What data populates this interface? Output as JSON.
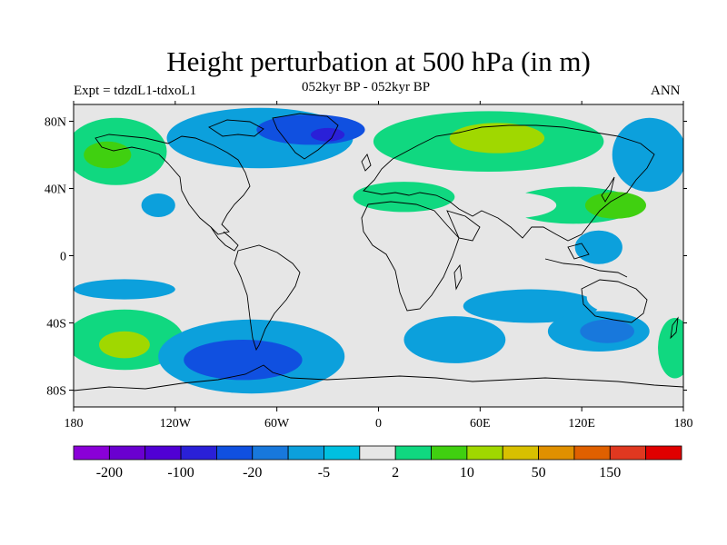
{
  "title": "Height perturbation at 500 hPa (in m)",
  "subtitle": "052kyr BP - 052kyr BP",
  "experiment": "Expt = tdzdL1-tdxoL1",
  "season": "ANN",
  "map": {
    "projection": "cylindrical-equidistant",
    "lon_range": [
      -180,
      180
    ],
    "lat_range": [
      -90,
      90
    ],
    "x_ticks": [
      {
        "lon": -180,
        "label": "180"
      },
      {
        "lon": -120,
        "label": "120W"
      },
      {
        "lon": -60,
        "label": "60W"
      },
      {
        "lon": 0,
        "label": "0"
      },
      {
        "lon": 60,
        "label": "60E"
      },
      {
        "lon": 120,
        "label": "120E"
      },
      {
        "lon": 180,
        "label": "180"
      }
    ],
    "y_ticks": [
      {
        "lat": 80,
        "label": "80N"
      },
      {
        "lat": 40,
        "label": "40N"
      },
      {
        "lat": 0,
        "label": "0"
      },
      {
        "lat": -40,
        "label": "40S"
      },
      {
        "lat": -80,
        "label": "80S"
      }
    ],
    "background_color": "#e6e6e6",
    "anomaly_regions": [
      {
        "lon": -155,
        "lat": 62,
        "rx": 30,
        "ry": 20,
        "bin": 9
      },
      {
        "lon": -160,
        "lat": 60,
        "rx": 14,
        "ry": 8,
        "bin": 10
      },
      {
        "lon": -100,
        "lat": 50,
        "rx": 18,
        "ry": 8,
        "bin": 8
      },
      {
        "lon": -130,
        "lat": 30,
        "rx": 10,
        "ry": 7,
        "bin": 6
      },
      {
        "lon": -70,
        "lat": 70,
        "rx": 55,
        "ry": 18,
        "bin": 6
      },
      {
        "lon": -40,
        "lat": 75,
        "rx": 32,
        "ry": 9,
        "bin": 4
      },
      {
        "lon": -30,
        "lat": 72,
        "rx": 10,
        "ry": 4,
        "bin": 3
      },
      {
        "lon": -75,
        "lat": 40,
        "rx": 22,
        "ry": 9,
        "bin": 8
      },
      {
        "lon": -40,
        "lat": 18,
        "rx": 40,
        "ry": 10,
        "bin": 8
      },
      {
        "lon": 15,
        "lat": 35,
        "rx": 30,
        "ry": 9,
        "bin": 9
      },
      {
        "lon": 65,
        "lat": 68,
        "rx": 68,
        "ry": 18,
        "bin": 9
      },
      {
        "lon": 70,
        "lat": 70,
        "rx": 28,
        "ry": 9,
        "bin": 11
      },
      {
        "lon": 160,
        "lat": 60,
        "rx": 22,
        "ry": 22,
        "bin": 6
      },
      {
        "lon": 115,
        "lat": 30,
        "rx": 38,
        "ry": 11,
        "bin": 9
      },
      {
        "lon": 140,
        "lat": 30,
        "rx": 18,
        "ry": 8,
        "bin": 10
      },
      {
        "lon": 75,
        "lat": 30,
        "rx": 30,
        "ry": 8,
        "bin": 8
      },
      {
        "lon": 130,
        "lat": 5,
        "rx": 14,
        "ry": 10,
        "bin": 6
      },
      {
        "lon": -150,
        "lat": -20,
        "rx": 30,
        "ry": 6,
        "bin": 6
      },
      {
        "lon": -110,
        "lat": -30,
        "rx": 15,
        "ry": 8,
        "bin": 8
      },
      {
        "lon": -150,
        "lat": -50,
        "rx": 35,
        "ry": 18,
        "bin": 9
      },
      {
        "lon": -150,
        "lat": -53,
        "rx": 15,
        "ry": 8,
        "bin": 11
      },
      {
        "lon": -75,
        "lat": -60,
        "rx": 55,
        "ry": 22,
        "bin": 6
      },
      {
        "lon": -80,
        "lat": -62,
        "rx": 35,
        "ry": 12,
        "bin": 4
      },
      {
        "lon": -40,
        "lat": -20,
        "rx": 32,
        "ry": 9,
        "bin": 8
      },
      {
        "lon": 20,
        "lat": -25,
        "rx": 15,
        "ry": 10,
        "bin": 8
      },
      {
        "lon": 45,
        "lat": -50,
        "rx": 30,
        "ry": 14,
        "bin": 6
      },
      {
        "lon": 60,
        "lat": -75,
        "rx": 70,
        "ry": 10,
        "bin": 8
      },
      {
        "lon": 90,
        "lat": -30,
        "rx": 40,
        "ry": 10,
        "bin": 6
      },
      {
        "lon": 145,
        "lat": -25,
        "rx": 22,
        "ry": 10,
        "bin": 8
      },
      {
        "lon": 130,
        "lat": -45,
        "rx": 30,
        "ry": 12,
        "bin": 6
      },
      {
        "lon": 135,
        "lat": -45,
        "rx": 16,
        "ry": 7,
        "bin": 5
      },
      {
        "lon": 175,
        "lat": -55,
        "rx": 10,
        "ry": 18,
        "bin": 9
      }
    ]
  },
  "colorbar": {
    "colors": [
      "#8a00d8",
      "#6a00d0",
      "#5000d4",
      "#2a20d8",
      "#1050e0",
      "#1878dc",
      "#0ca0dc",
      "#00c0e0",
      "#e6e6e6",
      "#10d880",
      "#40d010",
      "#a0d800",
      "#d8c000",
      "#e09000",
      "#e06000",
      "#e03820",
      "#e00000"
    ],
    "labels": [
      {
        "boundary": 1,
        "text": "-200"
      },
      {
        "boundary": 3,
        "text": "-100"
      },
      {
        "boundary": 5,
        "text": "-20"
      },
      {
        "boundary": 7,
        "text": "-5"
      },
      {
        "boundary": 9,
        "text": "2"
      },
      {
        "boundary": 11,
        "text": "10"
      },
      {
        "boundary": 13,
        "text": "50"
      },
      {
        "boundary": 15,
        "text": "150"
      }
    ]
  }
}
